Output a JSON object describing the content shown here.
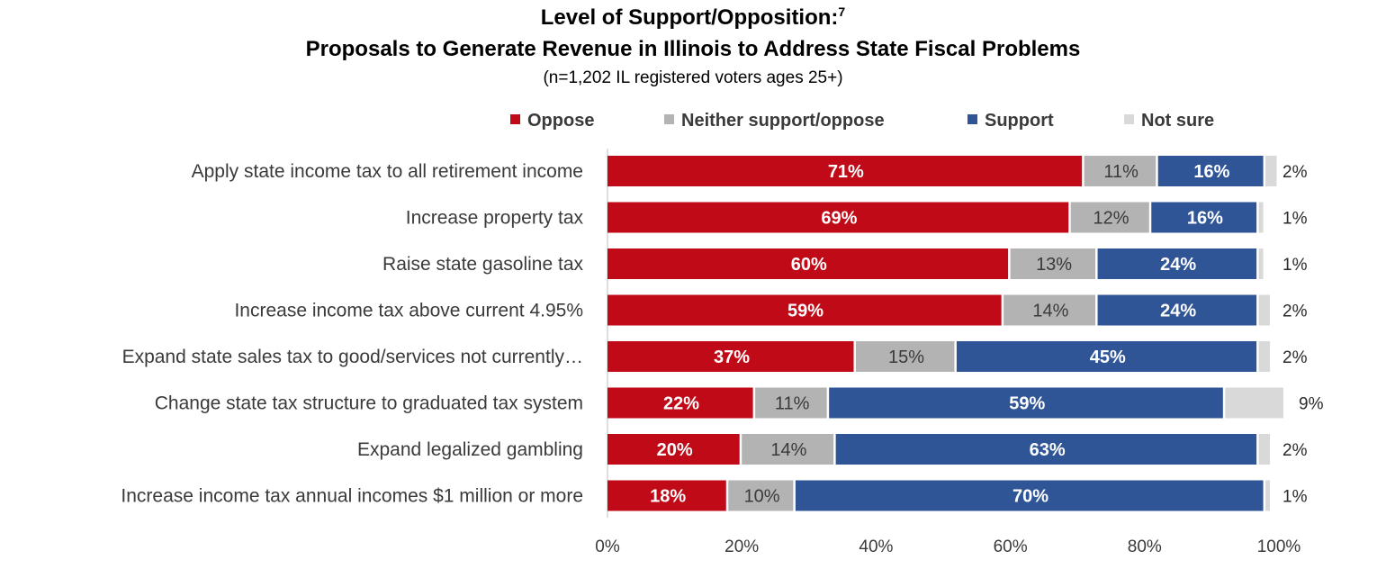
{
  "chart_data": {
    "type": "bar",
    "orientation": "horizontal",
    "stacked": true,
    "title": "Level of Support/Opposition:",
    "title_footnote": "7",
    "subtitle": "Proposals to Generate Revenue in Illinois to Address State Fiscal Problems",
    "note": "(n=1,202 IL registered voters ages 25+)",
    "legend_position": "top",
    "categories": [
      "Apply state income tax to all retirement income",
      "Increase property tax",
      "Raise state gasoline tax",
      "Increase income tax above current 4.95%",
      "Expand state sales tax to good/services not currently…",
      "Change state tax structure to graduated tax system",
      "Expand legalized gambling",
      "Increase income tax annual incomes $1 million or more"
    ],
    "series": [
      {
        "name": "Oppose",
        "color": "#c00a17",
        "values": [
          71,
          69,
          60,
          59,
          37,
          22,
          20,
          18
        ],
        "labels": [
          "71%",
          "69%",
          "60%",
          "59%",
          "37%",
          "22%",
          "20%",
          "18%"
        ]
      },
      {
        "name": "Neither support/oppose",
        "color": "#b3b3b3",
        "values": [
          11,
          12,
          13,
          14,
          15,
          11,
          14,
          10
        ],
        "labels": [
          "11%",
          "12%",
          "13%",
          "14%",
          "15%",
          "11%",
          "14%",
          "10%"
        ]
      },
      {
        "name": "Support",
        "color": "#2f5597",
        "values": [
          16,
          16,
          24,
          24,
          45,
          59,
          63,
          70
        ],
        "labels": [
          "16%",
          "16%",
          "24%",
          "24%",
          "45%",
          "59%",
          "63%",
          "70%"
        ]
      },
      {
        "name": "Not sure",
        "color": "#d9d9d9",
        "values": [
          2,
          1,
          1,
          2,
          2,
          9,
          2,
          1
        ],
        "labels": [
          "2%",
          "1%",
          "1%",
          "2%",
          "2%",
          "9%",
          "2%",
          "1%"
        ]
      }
    ],
    "x_ticks": [
      "0%",
      "20%",
      "40%",
      "60%",
      "80%",
      "100%"
    ],
    "xlim": [
      0,
      100
    ],
    "grid": false
  }
}
